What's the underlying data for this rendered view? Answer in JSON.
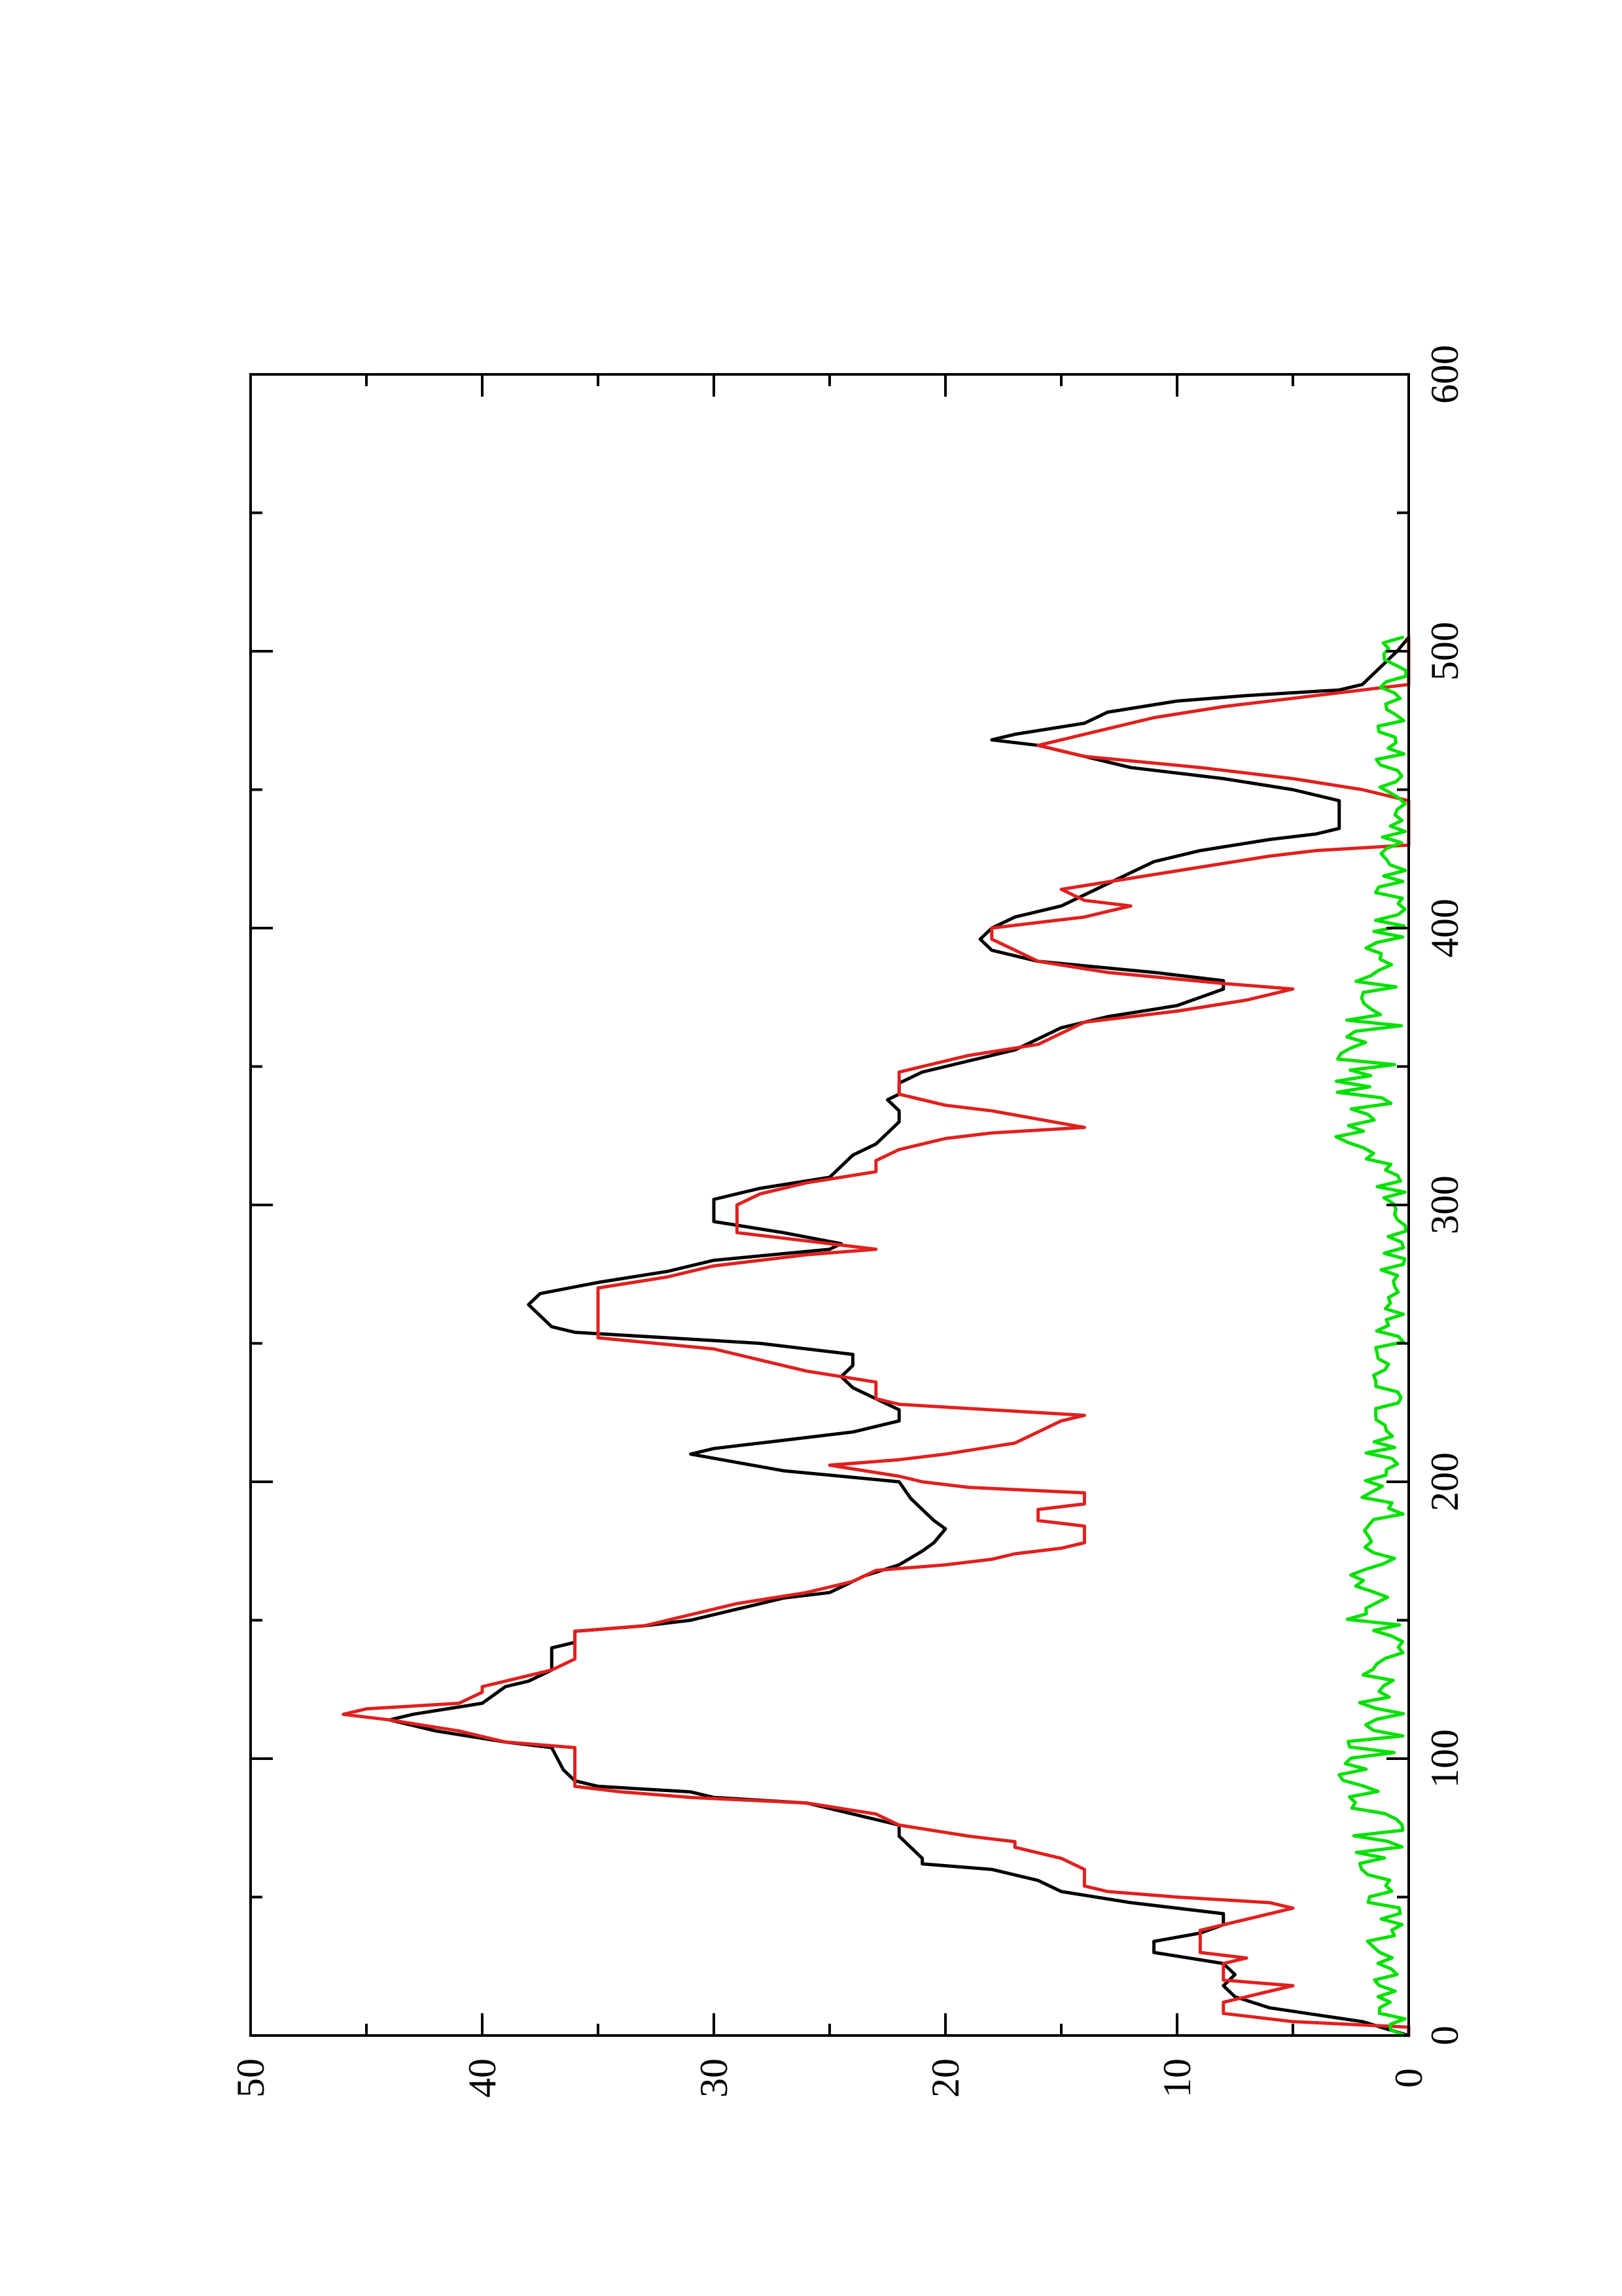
{
  "chart_data": {
    "type": "line",
    "orientation": "rotated-90-clockwise",
    "title": "",
    "xlabel": "",
    "ylabel": "",
    "xlim": [
      0,
      600
    ],
    "ylim": [
      0,
      50
    ],
    "x_ticks": [
      0,
      100,
      200,
      300,
      400,
      500,
      600
    ],
    "y_ticks": [
      0,
      10,
      20,
      30,
      40,
      50
    ],
    "x_tick_labels": [
      "0",
      "100",
      "200",
      "300",
      "400",
      "500",
      "600"
    ],
    "y_tick_labels": [
      "0",
      "10",
      "20",
      "30",
      "40",
      "50"
    ],
    "grid": false,
    "legend": "none",
    "series": [
      {
        "color": "#000000",
        "points": [
          [
            0,
            0
          ],
          [
            5,
            2
          ],
          [
            10,
            6
          ],
          [
            14,
            7.5
          ],
          [
            18,
            8
          ],
          [
            22,
            7.5
          ],
          [
            26,
            8
          ],
          [
            30,
            11
          ],
          [
            34,
            11
          ],
          [
            37,
            9
          ],
          [
            40,
            8
          ],
          [
            44,
            8
          ],
          [
            48,
            12
          ],
          [
            52,
            15
          ],
          [
            56,
            16
          ],
          [
            60,
            18
          ],
          [
            62,
            21
          ],
          [
            64,
            21
          ],
          [
            68,
            21.5
          ],
          [
            72,
            22
          ],
          [
            76,
            22
          ],
          [
            80,
            24
          ],
          [
            84,
            26
          ],
          [
            86,
            30
          ],
          [
            88,
            31
          ],
          [
            90,
            35
          ],
          [
            92,
            36
          ],
          [
            96,
            36.5
          ],
          [
            104,
            37
          ],
          [
            106,
            39
          ],
          [
            110,
            42
          ],
          [
            114,
            44
          ],
          [
            116,
            43
          ],
          [
            120,
            40
          ],
          [
            126,
            39
          ],
          [
            128,
            38
          ],
          [
            132,
            37
          ],
          [
            140,
            37
          ],
          [
            142,
            36
          ],
          [
            146,
            36
          ],
          [
            148,
            33
          ],
          [
            150,
            31
          ],
          [
            154,
            29
          ],
          [
            158,
            27
          ],
          [
            160,
            25
          ],
          [
            162,
            24.5
          ],
          [
            164,
            24
          ],
          [
            166,
            23.5
          ],
          [
            170,
            22
          ],
          [
            175,
            21
          ],
          [
            178,
            20.5
          ],
          [
            183,
            20
          ],
          [
            186,
            20.5
          ],
          [
            190,
            21
          ],
          [
            194,
            21.5
          ],
          [
            200,
            22
          ],
          [
            204,
            27
          ],
          [
            207,
            29
          ],
          [
            210,
            31
          ],
          [
            212,
            30
          ],
          [
            215,
            27
          ],
          [
            218,
            24
          ],
          [
            222,
            22
          ],
          [
            226,
            22
          ],
          [
            230,
            23
          ],
          [
            234,
            24
          ],
          [
            238,
            24.5
          ],
          [
            242,
            24
          ],
          [
            246,
            24
          ],
          [
            250,
            28
          ],
          [
            252,
            32
          ],
          [
            254,
            36
          ],
          [
            256,
            37
          ],
          [
            260,
            37.5
          ],
          [
            264,
            38
          ],
          [
            268,
            37.5
          ],
          [
            272,
            35
          ],
          [
            276,
            32
          ],
          [
            280,
            30
          ],
          [
            284,
            25
          ],
          [
            286,
            24.5
          ],
          [
            290,
            27
          ],
          [
            294,
            30
          ],
          [
            302,
            30
          ],
          [
            306,
            28
          ],
          [
            310,
            25
          ],
          [
            314,
            24.5
          ],
          [
            318,
            24
          ],
          [
            322,
            23
          ],
          [
            326,
            22.5
          ],
          [
            330,
            22
          ],
          [
            334,
            22
          ],
          [
            338,
            22.5
          ],
          [
            340,
            22
          ],
          [
            344,
            22
          ],
          [
            348,
            21
          ],
          [
            352,
            19
          ],
          [
            356,
            17
          ],
          [
            360,
            16
          ],
          [
            364,
            15
          ],
          [
            368,
            13
          ],
          [
            372,
            10
          ],
          [
            375,
            9
          ],
          [
            378,
            8
          ],
          [
            381,
            8
          ],
          [
            384,
            11
          ],
          [
            388,
            16
          ],
          [
            392,
            18
          ],
          [
            396,
            18.5
          ],
          [
            400,
            18
          ],
          [
            404,
            17
          ],
          [
            408,
            15
          ],
          [
            412,
            14
          ],
          [
            416,
            13
          ],
          [
            420,
            12
          ],
          [
            424,
            11
          ],
          [
            428,
            9
          ],
          [
            432,
            6
          ],
          [
            434,
            4
          ],
          [
            436,
            3
          ],
          [
            438,
            3
          ],
          [
            442,
            3
          ],
          [
            446,
            3
          ],
          [
            450,
            5
          ],
          [
            454,
            8
          ],
          [
            458,
            12
          ],
          [
            462,
            14
          ],
          [
            466,
            16
          ],
          [
            468,
            18
          ],
          [
            470,
            17
          ],
          [
            474,
            14
          ],
          [
            478,
            13
          ],
          [
            482,
            10
          ],
          [
            484,
            7
          ],
          [
            486,
            3
          ],
          [
            488,
            2
          ],
          [
            492,
            1.5
          ],
          [
            496,
            1
          ],
          [
            500,
            0.5
          ],
          [
            505,
            0
          ]
        ]
      },
      {
        "color": "#e0201e",
        "points": [
          [
            0,
            0
          ],
          [
            3,
            0
          ],
          [
            5,
            5
          ],
          [
            8,
            8
          ],
          [
            12,
            8
          ],
          [
            14,
            7
          ],
          [
            16,
            6
          ],
          [
            18,
            5
          ],
          [
            20,
            8
          ],
          [
            24,
            8
          ],
          [
            26,
            8
          ],
          [
            28,
            7
          ],
          [
            30,
            9
          ],
          [
            34,
            9
          ],
          [
            38,
            9
          ],
          [
            40,
            8
          ],
          [
            44,
            6
          ],
          [
            46,
            5
          ],
          [
            48,
            6
          ],
          [
            50,
            10
          ],
          [
            52,
            13
          ],
          [
            54,
            14
          ],
          [
            56,
            14
          ],
          [
            60,
            14
          ],
          [
            64,
            15
          ],
          [
            68,
            17
          ],
          [
            70,
            17
          ],
          [
            72,
            19
          ],
          [
            76,
            22
          ],
          [
            80,
            23
          ],
          [
            84,
            26
          ],
          [
            86,
            31
          ],
          [
            88,
            34
          ],
          [
            90,
            36
          ],
          [
            104,
            36
          ],
          [
            106,
            39
          ],
          [
            108,
            40
          ],
          [
            110,
            41
          ],
          [
            114,
            44
          ],
          [
            116,
            46
          ],
          [
            118,
            45
          ],
          [
            120,
            41
          ],
          [
            124,
            40
          ],
          [
            126,
            40
          ],
          [
            128,
            39
          ],
          [
            132,
            37
          ],
          [
            136,
            36
          ],
          [
            146,
            36
          ],
          [
            148,
            33
          ],
          [
            152,
            31
          ],
          [
            156,
            29
          ],
          [
            160,
            26
          ],
          [
            164,
            24
          ],
          [
            168,
            23
          ],
          [
            170,
            20
          ],
          [
            172,
            18
          ],
          [
            174,
            17
          ],
          [
            176,
            15
          ],
          [
            178,
            14
          ],
          [
            184,
            14
          ],
          [
            186,
            16
          ],
          [
            190,
            16
          ],
          [
            192,
            14
          ],
          [
            196,
            14
          ],
          [
            198,
            19
          ],
          [
            200,
            21
          ],
          [
            202,
            22
          ],
          [
            206,
            25
          ],
          [
            208,
            22
          ],
          [
            210,
            20
          ],
          [
            214,
            17
          ],
          [
            218,
            16
          ],
          [
            222,
            15
          ],
          [
            224,
            14
          ],
          [
            228,
            22
          ],
          [
            230,
            23
          ],
          [
            236,
            23
          ],
          [
            240,
            26
          ],
          [
            244,
            28
          ],
          [
            248,
            30
          ],
          [
            252,
            35
          ],
          [
            270,
            35
          ],
          [
            274,
            32
          ],
          [
            276,
            31
          ],
          [
            278,
            30
          ],
          [
            282,
            26
          ],
          [
            284,
            23
          ],
          [
            286,
            25
          ],
          [
            290,
            29
          ],
          [
            300,
            29
          ],
          [
            304,
            28
          ],
          [
            308,
            26
          ],
          [
            312,
            23
          ],
          [
            316,
            23
          ],
          [
            320,
            22
          ],
          [
            324,
            20
          ],
          [
            326,
            18
          ],
          [
            328,
            14
          ],
          [
            334,
            18
          ],
          [
            336,
            20
          ],
          [
            340,
            22
          ],
          [
            348,
            22
          ],
          [
            350,
            21
          ],
          [
            354,
            19
          ],
          [
            358,
            16
          ],
          [
            362,
            15
          ],
          [
            366,
            14
          ],
          [
            370,
            10
          ],
          [
            374,
            7
          ],
          [
            378,
            5
          ],
          [
            380,
            8
          ],
          [
            384,
            13
          ],
          [
            388,
            16
          ],
          [
            392,
            17
          ],
          [
            396,
            18
          ],
          [
            400,
            18
          ],
          [
            402,
            16
          ],
          [
            404,
            14
          ],
          [
            406,
            13
          ],
          [
            408,
            12
          ],
          [
            410,
            14
          ],
          [
            414,
            15
          ],
          [
            418,
            12
          ],
          [
            422,
            9
          ],
          [
            426,
            6
          ],
          [
            428,
            4
          ],
          [
            430,
            0
          ],
          [
            436,
            0
          ],
          [
            446,
            0
          ],
          [
            450,
            2
          ],
          [
            454,
            5
          ],
          [
            458,
            9
          ],
          [
            462,
            14
          ],
          [
            466,
            16
          ],
          [
            468,
            15
          ],
          [
            472,
            13
          ],
          [
            476,
            11
          ],
          [
            480,
            8
          ],
          [
            484,
            4
          ],
          [
            486,
            2
          ],
          [
            488,
            0
          ],
          [
            505,
            0
          ]
        ]
      },
      {
        "color": "#00e000",
        "generator": "noise",
        "n": 253,
        "xmax": 505,
        "amplitude_max": 3.2,
        "segments": [
          [
            0,
            0.6
          ],
          [
            60,
            1.3
          ],
          [
            90,
            1.7
          ],
          [
            120,
            1.2
          ],
          [
            160,
            1.6
          ],
          [
            200,
            1.1
          ],
          [
            250,
            0.9
          ],
          [
            300,
            0.5
          ],
          [
            330,
            2.0
          ],
          [
            370,
            1.5
          ],
          [
            400,
            1.0
          ],
          [
            440,
            0.6
          ],
          [
            470,
            0.9
          ],
          [
            505,
            0.6
          ]
        ]
      }
    ]
  }
}
